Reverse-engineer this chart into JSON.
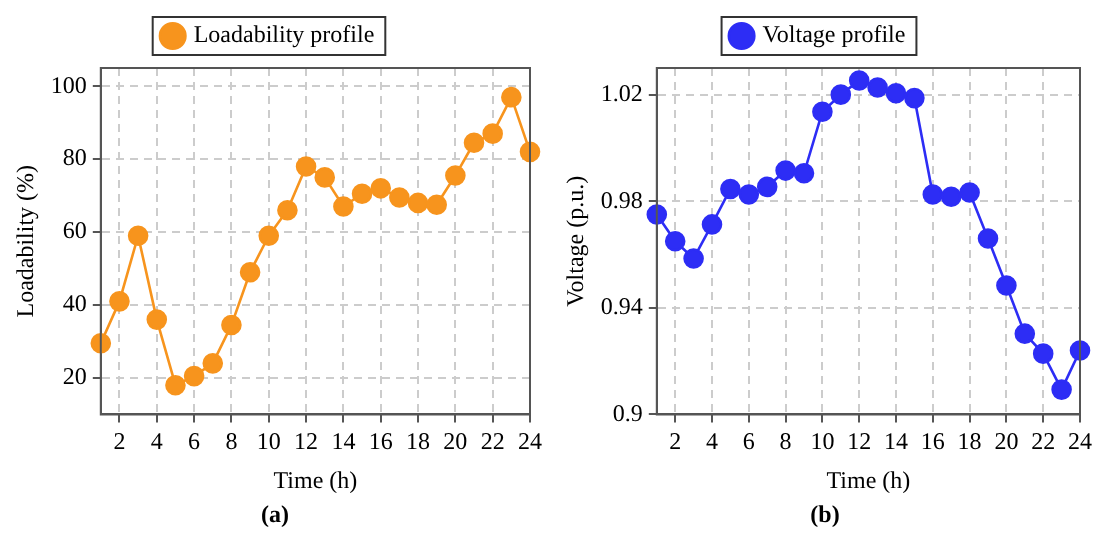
{
  "chart_data": [
    {
      "type": "line",
      "xlabel": "Time (h)",
      "ylabel": "Loadability (%)",
      "x": [
        1,
        2,
        3,
        4,
        5,
        6,
        7,
        8,
        9,
        10,
        11,
        12,
        13,
        14,
        15,
        16,
        17,
        18,
        19,
        20,
        21,
        22,
        23,
        24
      ],
      "series": [
        {
          "name": "Loadability profile",
          "color": "#f7941d",
          "values": [
            29.5,
            41,
            59,
            36,
            18,
            20.5,
            24,
            34.5,
            49,
            59,
            66,
            78,
            75,
            67,
            70.5,
            72,
            69.5,
            68,
            67.5,
            75.5,
            84.5,
            87,
            97,
            82
          ]
        }
      ],
      "xlim": [
        1,
        24
      ],
      "xticks": [
        2,
        4,
        6,
        8,
        10,
        12,
        14,
        16,
        18,
        20,
        22,
        24
      ],
      "ylim": [
        10,
        105
      ],
      "yticks": [
        20,
        40,
        60,
        80,
        100
      ],
      "grid": true,
      "legend": "top",
      "marker": "circle",
      "line_style": "solid",
      "annotations": [
        "(a)"
      ]
    },
    {
      "type": "line",
      "xlabel": "Time (h)",
      "ylabel": "Voltage (p.u.)",
      "x": [
        1,
        2,
        3,
        4,
        5,
        6,
        7,
        8,
        9,
        10,
        11,
        12,
        13,
        14,
        15,
        16,
        17,
        18,
        19,
        20,
        21,
        22,
        23,
        24
      ],
      "series": [
        {
          "name": "Voltage profile",
          "color": "#2d2df5",
          "values": [
            0.975,
            0.965,
            0.9585,
            0.9713,
            0.9846,
            0.9825,
            0.9854,
            0.9915,
            0.9905,
            1.0136,
            1.02,
            1.0253,
            1.0227,
            1.0205,
            1.0187,
            0.9825,
            0.9817,
            0.9833,
            0.966,
            0.9484,
            0.9303,
            0.9228,
            0.9093,
            0.924
          ]
        }
      ],
      "xlim": [
        1,
        24
      ],
      "xticks": [
        2,
        4,
        6,
        8,
        10,
        12,
        14,
        16,
        18,
        20,
        22,
        24
      ],
      "ylim": [
        0.9,
        1.03
      ],
      "yticks": [
        {
          "value": 0.9,
          "label": "0.9"
        },
        {
          "value": 0.94,
          "label": "0.94"
        },
        {
          "value": 0.98,
          "label": "0.98"
        },
        {
          "value": 1.02,
          "label": "1.02"
        }
      ],
      "grid": true,
      "legend": "top",
      "marker": "circle",
      "line_style": "solid",
      "annotations": [
        "(b)"
      ]
    }
  ]
}
